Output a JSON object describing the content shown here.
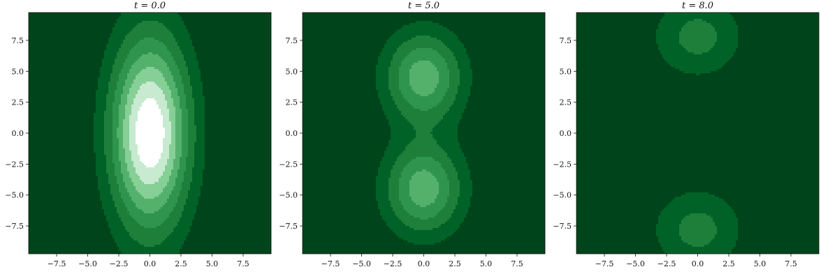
{
  "figure": {
    "colors": {
      "background": "#ffffff",
      "colormap": [
        "#00441b",
        "#006227",
        "#1d7f3a",
        "#2f944e",
        "#54b16c",
        "#86cf97",
        "#c7ead0",
        "#ffffff"
      ]
    }
  },
  "chart_data": [
    {
      "type": "heatmap",
      "title": "t = 0.0",
      "xlim": [
        -9.75,
        9.75
      ],
      "ylim": [
        -9.75,
        9.75
      ],
      "xticks": [
        -7.5,
        -5.0,
        -2.5,
        0.0,
        2.5,
        5.0,
        7.5
      ],
      "yticks": [
        -7.5,
        -5.0,
        -2.5,
        0.0,
        2.5,
        5.0,
        7.5
      ],
      "xticklabels": [
        "−7.5",
        "−5.0",
        "−2.5",
        "0.0",
        "2.5",
        "5.0",
        "7.5"
      ],
      "yticklabels": [
        "−7.5",
        "−5.0",
        "−2.5",
        "0.0",
        "2.5",
        "5.0",
        "7.5"
      ],
      "grid": false,
      "peaks": [
        {
          "x": 0.0,
          "y": 0.0,
          "sx": 2.2,
          "sy": 5.5,
          "amp": 1.0
        }
      ]
    },
    {
      "type": "heatmap",
      "title": "t = 5.0",
      "xlim": [
        -9.75,
        9.75
      ],
      "ylim": [
        -9.75,
        9.75
      ],
      "xticks": [
        -7.5,
        -5.0,
        -2.5,
        0.0,
        2.5,
        5.0,
        7.5
      ],
      "yticks": [
        -7.5,
        -5.0,
        -2.5,
        0.0,
        2.5,
        5.0,
        7.5
      ],
      "xticklabels": [
        "−7.5",
        "−5.0",
        "−2.5",
        "0.0",
        "2.5",
        "5.0",
        "7.5"
      ],
      "yticklabels": [
        "−7.5",
        "−5.0",
        "−2.5",
        "0.0",
        "2.5",
        "5.0",
        "7.5"
      ],
      "grid": false,
      "peaks": [
        {
          "x": 0.0,
          "y": 4.5,
          "sx": 2.2,
          "sy": 2.6,
          "amp": 0.58
        },
        {
          "x": 0.0,
          "y": -4.5,
          "sx": 2.2,
          "sy": 2.6,
          "amp": 0.58
        }
      ]
    },
    {
      "type": "heatmap",
      "title": "t = 8.0",
      "xlim": [
        -9.75,
        9.75
      ],
      "ylim": [
        -9.75,
        9.75
      ],
      "xticks": [
        -7.5,
        -5.0,
        -2.5,
        0.0,
        2.5,
        5.0,
        7.5
      ],
      "yticks": [
        -7.5,
        -5.0,
        -2.5,
        0.0,
        2.5,
        5.0,
        7.5
      ],
      "xticklabels": [
        "−7.5",
        "−5.0",
        "−2.5",
        "0.0",
        "2.5",
        "5.0",
        "7.5"
      ],
      "yticklabels": [
        "−7.5",
        "−5.0",
        "−2.5",
        "0.0",
        "2.5",
        "5.0",
        "7.5"
      ],
      "grid": false,
      "peaks": [
        {
          "x": 0.0,
          "y": 7.8,
          "sx": 2.5,
          "sy": 2.3,
          "amp": 0.3
        },
        {
          "x": 0.0,
          "y": -7.8,
          "sx": 2.5,
          "sy": 2.3,
          "amp": 0.3
        }
      ]
    }
  ]
}
